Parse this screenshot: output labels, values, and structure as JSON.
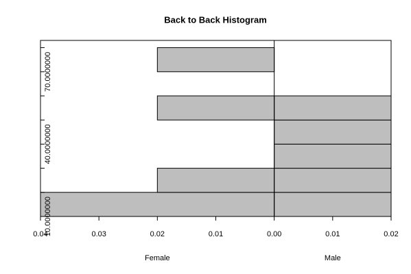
{
  "chart_data": {
    "type": "back_to_back_histogram",
    "title": "Back to Back Histogram",
    "bins": [
      10,
      20,
      30,
      40,
      50,
      60,
      70,
      80
    ],
    "series": [
      {
        "name": "Female",
        "color": "#bebebe",
        "values": [
          0.04,
          0.02,
          0,
          0,
          0.02,
          0,
          0.02
        ]
      },
      {
        "name": "Male",
        "color": "#bebebe",
        "values": [
          0.02,
          0.02,
          0.02,
          0.02,
          0.02,
          0,
          0
        ]
      }
    ],
    "xlim": [
      -0.04,
      0.02
    ],
    "xticks": [
      {
        "value": -0.04,
        "label": "0.04"
      },
      {
        "value": -0.03,
        "label": "0.03"
      },
      {
        "value": -0.02,
        "label": "0.02"
      },
      {
        "value": -0.01,
        "label": "0.01"
      },
      {
        "value": 0,
        "label": "0.00"
      },
      0.01,
      0.02
    ],
    "ylim": [
      10,
      83
    ],
    "yticks": [
      {
        "value": 10,
        "label": "10.0000000"
      },
      {
        "value": 40,
        "label": "40.0000000"
      },
      {
        "value": 70,
        "label": "70.0000000"
      }
    ],
    "yminor_ticks": [
      20,
      30,
      50,
      60,
      80
    ]
  }
}
